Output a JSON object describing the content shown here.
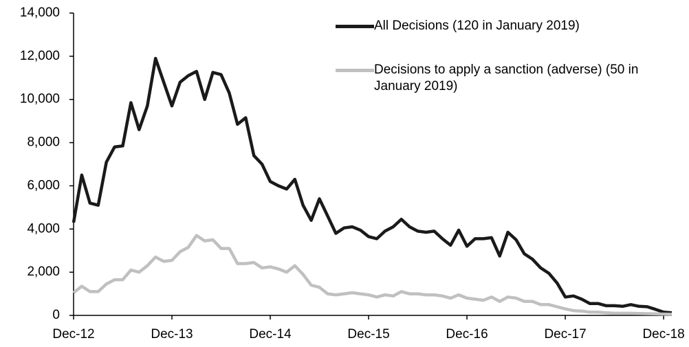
{
  "chart_data": {
    "type": "line",
    "categories": [
      "Dec-12",
      null,
      null,
      null,
      null,
      null,
      null,
      null,
      null,
      null,
      null,
      null,
      "Dec-13",
      null,
      null,
      null,
      null,
      null,
      null,
      null,
      null,
      null,
      null,
      null,
      "Dec-14",
      null,
      null,
      null,
      null,
      null,
      null,
      null,
      null,
      null,
      null,
      null,
      "Dec-15",
      null,
      null,
      null,
      null,
      null,
      null,
      null,
      null,
      null,
      null,
      null,
      "Dec-16",
      null,
      null,
      null,
      null,
      null,
      null,
      null,
      null,
      null,
      null,
      null,
      "Dec-17",
      null,
      null,
      null,
      null,
      null,
      null,
      null,
      null,
      null,
      null,
      null,
      "Dec-18",
      null
    ],
    "series": [
      {
        "name": "All Decisions (120 in January 2019)",
        "color": "#1a1a1a",
        "values": [
          4300,
          6500,
          5200,
          5100,
          7100,
          7800,
          7850,
          9850,
          8600,
          9700,
          11900,
          10800,
          9700,
          10800,
          11100,
          11300,
          10000,
          11250,
          11150,
          10300,
          8850,
          9150,
          7400,
          7000,
          6200,
          6000,
          5850,
          6300,
          5100,
          4400,
          5400,
          4600,
          3800,
          4050,
          4100,
          3950,
          3650,
          3550,
          3900,
          4100,
          4450,
          4100,
          3900,
          3850,
          3900,
          3550,
          3250,
          3950,
          3200,
          3550,
          3550,
          3600,
          2750,
          3850,
          3500,
          2850,
          2600,
          2200,
          1950,
          1500,
          850,
          900,
          750,
          550,
          550,
          450,
          450,
          420,
          500,
          420,
          400,
          280,
          150,
          120
        ]
      },
      {
        "name": "Decisions to apply a sanction (adverse) (50 in January 2019)",
        "color": "#c0c0c0",
        "values": [
          1050,
          1350,
          1100,
          1100,
          1450,
          1650,
          1650,
          2100,
          2000,
          2300,
          2700,
          2500,
          2550,
          2950,
          3150,
          3700,
          3450,
          3500,
          3100,
          3100,
          2400,
          2400,
          2450,
          2200,
          2250,
          2150,
          2000,
          2300,
          1900,
          1400,
          1300,
          1000,
          950,
          1000,
          1050,
          1000,
          950,
          850,
          950,
          900,
          1100,
          1000,
          1000,
          950,
          950,
          900,
          800,
          950,
          800,
          750,
          700,
          850,
          650,
          850,
          800,
          650,
          650,
          500,
          500,
          400,
          300,
          220,
          200,
          150,
          150,
          120,
          100,
          100,
          100,
          90,
          80,
          70,
          60,
          50
        ]
      }
    ],
    "ylim": [
      0,
      14000
    ],
    "yticks": [
      0,
      {
        "value": 2000,
        "label": "2,000"
      },
      {
        "value": 4000,
        "label": "4,000"
      },
      {
        "value": 6000,
        "label": "6,000"
      },
      {
        "value": 8000,
        "label": "8,000"
      },
      {
        "value": 10000,
        "label": "10,000"
      },
      {
        "value": 12000,
        "label": "12,000"
      },
      {
        "value": 14000,
        "label": "14,000"
      }
    ],
    "grid": false,
    "legend": "top-right"
  }
}
